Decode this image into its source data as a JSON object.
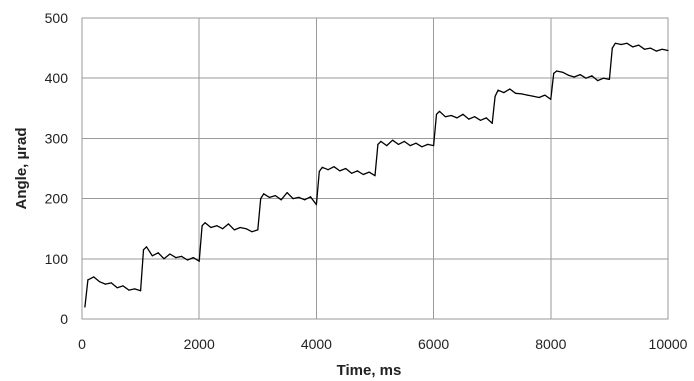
{
  "chart_data": {
    "type": "line",
    "title": "",
    "xlabel": "Time, ms",
    "ylabel": "Angle, µrad",
    "xlim": [
      0,
      10000
    ],
    "ylim": [
      0,
      500
    ],
    "xticks": [
      0,
      2000,
      4000,
      6000,
      8000,
      10000
    ],
    "yticks": [
      0,
      100,
      200,
      300,
      400,
      500
    ],
    "grid": true,
    "legend": "none",
    "series": [
      {
        "color": "#000000",
        "x": [
          50,
          100,
          200,
          300,
          400,
          500,
          600,
          700,
          800,
          900,
          1000,
          1050,
          1100,
          1200,
          1300,
          1400,
          1500,
          1600,
          1700,
          1800,
          1900,
          2000,
          2050,
          2100,
          2200,
          2300,
          2400,
          2500,
          2600,
          2700,
          2800,
          2900,
          3000,
          3050,
          3100,
          3200,
          3300,
          3400,
          3500,
          3600,
          3700,
          3800,
          3900,
          4000,
          4050,
          4100,
          4200,
          4300,
          4400,
          4500,
          4600,
          4700,
          4800,
          4900,
          5000,
          5050,
          5100,
          5200,
          5300,
          5400,
          5500,
          5600,
          5700,
          5800,
          5900,
          6000,
          6050,
          6100,
          6200,
          6300,
          6400,
          6500,
          6600,
          6700,
          6800,
          6900,
          7000,
          7050,
          7100,
          7200,
          7300,
          7400,
          7500,
          7600,
          7700,
          7800,
          7900,
          8000,
          8050,
          8100,
          8200,
          8300,
          8400,
          8500,
          8600,
          8700,
          8800,
          8900,
          9000,
          9050,
          9100,
          9200,
          9300,
          9400,
          9500,
          9600,
          9700,
          9800,
          9900,
          10000
        ],
        "y": [
          20,
          65,
          70,
          62,
          58,
          60,
          52,
          55,
          48,
          50,
          47,
          115,
          120,
          105,
          110,
          100,
          108,
          102,
          104,
          98,
          102,
          96,
          155,
          160,
          152,
          155,
          150,
          158,
          148,
          152,
          150,
          145,
          148,
          200,
          208,
          202,
          205,
          198,
          210,
          200,
          202,
          198,
          203,
          190,
          245,
          252,
          248,
          253,
          246,
          250,
          242,
          246,
          240,
          244,
          238,
          290,
          295,
          288,
          297,
          290,
          295,
          288,
          292,
          286,
          290,
          288,
          340,
          345,
          336,
          338,
          334,
          340,
          332,
          336,
          330,
          334,
          325,
          370,
          380,
          376,
          382,
          375,
          374,
          372,
          370,
          368,
          372,
          365,
          408,
          412,
          410,
          405,
          402,
          406,
          400,
          404,
          396,
          400,
          398,
          450,
          458,
          456,
          458,
          452,
          455,
          448,
          450,
          445,
          448,
          446
        ]
      }
    ]
  }
}
